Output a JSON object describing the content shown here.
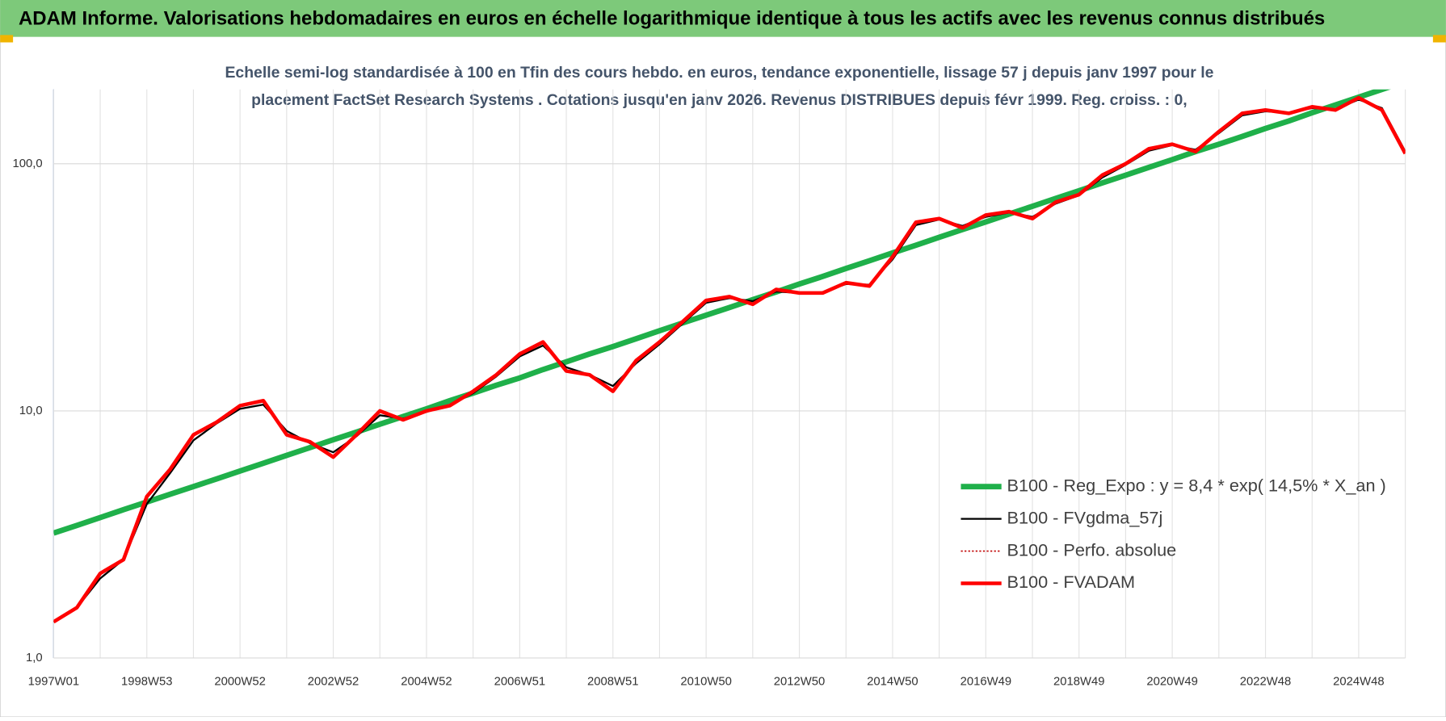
{
  "chart_data": {
    "type": "line",
    "title": "ADAM Informe. Valorisations hebdomadaires en euros en échelle logarithmique identique à tous les actifs avec les revenus connus distribués",
    "subtitle": "Echelle semi-log standardisée à 100 en Tfin des cours hebdo. en euros, tendance exponentielle, lissage 57 j depuis janv 1997 pour le placement FactSet Research Systems . Cotations jusqu'en janv 2026. Revenus DISTRIBUES depuis févr 1999. Reg. croiss. : 0,",
    "categories": [
      "1997W01",
      null,
      null,
      null,
      "1998W53",
      null,
      null,
      null,
      "2000W52",
      null,
      null,
      null,
      "2002W52",
      null,
      null,
      null,
      "2004W52",
      null,
      null,
      null,
      "2006W51",
      null,
      null,
      null,
      "2008W51",
      null,
      null,
      null,
      "2010W50",
      null,
      null,
      null,
      "2012W50",
      null,
      null,
      null,
      "2014W50",
      null,
      null,
      null,
      "2016W49",
      null,
      null,
      null,
      "2018W49",
      null,
      null,
      null,
      "2020W49",
      null,
      null,
      null,
      "2022W48",
      null,
      null,
      null,
      "2024W48",
      null,
      null
    ],
    "series": [
      {
        "name": "B100 - Reg_Expo : y = 8,4 * exp( 14,5% *  X_an )",
        "color": "#1fb04a",
        "width": 6,
        "dash": "none",
        "values": [
          3.2,
          3.44,
          3.7,
          3.98,
          4.28,
          4.6,
          4.94,
          5.31,
          5.71,
          6.14,
          6.61,
          7.1,
          7.64,
          8.21,
          8.83,
          9.49,
          10.2,
          11,
          11.8,
          12.7,
          13.6,
          14.7,
          15.8,
          17,
          18.2,
          19.6,
          21.1,
          22.7,
          24.4,
          26.2,
          28.2,
          30.3,
          32.6,
          35,
          37.7,
          40.5,
          43.6,
          46.8,
          50.4,
          54.2,
          58.2,
          62.6,
          67.3,
          72.4,
          77.8,
          83.7,
          89.9,
          96.7,
          104,
          112,
          120,
          129,
          139,
          149,
          161,
          173,
          186,
          200,
          215
        ]
      },
      {
        "name": "B100 - FVgdma_57j",
        "color": "#000000",
        "width": 2,
        "dash": "none",
        "values": [
          1.4,
          1.6,
          2.1,
          2.5,
          4.2,
          5.6,
          7.6,
          8.9,
          10.2,
          10.6,
          8.3,
          7.4,
          6.8,
          7.9,
          9.6,
          9.3,
          9.9,
          10.6,
          11.8,
          13.8,
          16.6,
          18.4,
          15,
          14,
          12.6,
          15.6,
          18.6,
          22.6,
          27.4,
          28.6,
          27.8,
          30.4,
          30,
          30.2,
          32.6,
          32.4,
          41,
          56.5,
          59.5,
          56,
          61,
          63.5,
          61,
          69,
          74.5,
          88,
          99,
          113,
          119,
          114,
          133,
          157,
          163,
          161,
          168,
          166,
          182,
          168,
          112
        ]
      },
      {
        "name": "B100 - Perfo. absolue",
        "color": "#c00000",
        "width": 1.5,
        "dash": "2 2",
        "values": [
          1.4,
          1.6,
          2.2,
          2.5,
          4.5,
          5.8,
          8,
          9,
          10.5,
          11,
          8,
          7.5,
          6.5,
          8,
          10,
          9.2,
          10,
          10.5,
          12,
          14,
          17,
          19,
          14.5,
          14,
          12,
          16,
          19,
          23,
          28,
          29,
          27,
          31,
          30,
          30,
          33,
          32,
          42,
          58,
          60,
          55,
          62,
          64,
          60,
          70,
          75,
          90,
          100,
          115,
          120,
          112,
          135,
          160,
          165,
          160,
          170,
          165,
          185,
          165,
          110
        ]
      },
      {
        "name": "B100 - FVADAM",
        "color": "#ff0000",
        "width": 4,
        "dash": "none",
        "values": [
          1.4,
          1.6,
          2.2,
          2.5,
          4.5,
          5.8,
          8,
          9,
          10.5,
          11,
          8,
          7.5,
          6.5,
          8,
          10,
          9.2,
          10,
          10.5,
          12,
          14,
          17,
          19,
          14.5,
          14,
          12,
          16,
          19,
          23,
          28,
          29,
          27,
          31,
          30,
          30,
          33,
          32,
          42,
          58,
          60,
          55,
          62,
          64,
          60,
          70,
          75,
          90,
          100,
          115,
          120,
          112,
          135,
          160,
          165,
          160,
          170,
          165,
          185,
          165,
          110
        ]
      }
    ],
    "log_scale": true,
    "ylim": [
      1,
      200
    ],
    "yticks": [
      {
        "value": 1,
        "label": "1,0"
      },
      {
        "value": 10,
        "label": "10,0"
      },
      {
        "value": 100,
        "label": "100,0"
      }
    ],
    "grid": true,
    "legend": "lower right"
  }
}
